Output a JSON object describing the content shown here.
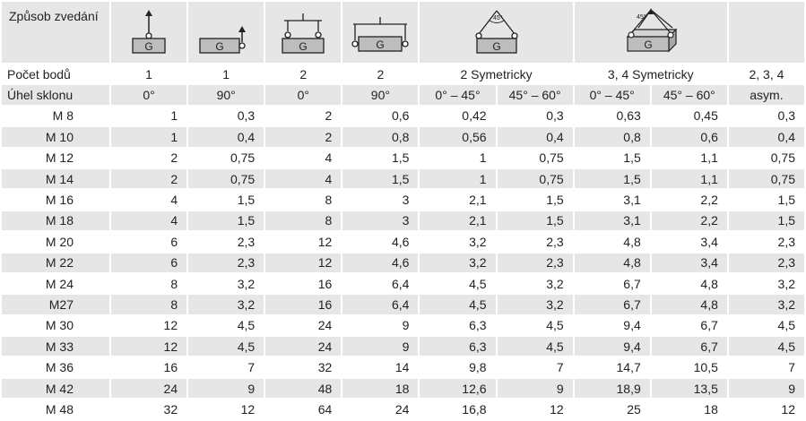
{
  "header": {
    "title": "Způsob zvedání",
    "points_label": "Počet bodů",
    "angle_label": "Úhel sklonu",
    "icon_letter": "G",
    "angle_marks": [
      "45°",
      "45°"
    ]
  },
  "points_row": [
    "1",
    "1",
    "2",
    "2",
    "2 Symetricky",
    "3, 4 Symetricky",
    "2, 3, 4"
  ],
  "angle_row": [
    "0°",
    "90°",
    "0°",
    "90°",
    "0° – 45°",
    "45° – 60°",
    "0° – 45°",
    "45° – 60°",
    "asym."
  ],
  "rows": [
    {
      "label": "M 8",
      "values": [
        "1",
        "0,3",
        "2",
        "0,6",
        "0,42",
        "0,3",
        "0,63",
        "0,45",
        "0,3"
      ]
    },
    {
      "label": "M 10",
      "values": [
        "1",
        "0,4",
        "2",
        "0,8",
        "0,56",
        "0,4",
        "0,8",
        "0,6",
        "0,4"
      ]
    },
    {
      "label": "M 12",
      "values": [
        "2",
        "0,75",
        "4",
        "1,5",
        "1",
        "0,75",
        "1,5",
        "1,1",
        "0,75"
      ]
    },
    {
      "label": "M 14",
      "values": [
        "2",
        "0,75",
        "4",
        "1,5",
        "1",
        "0,75",
        "1,5",
        "1,1",
        "0,75"
      ]
    },
    {
      "label": "M 16",
      "values": [
        "4",
        "1,5",
        "8",
        "3",
        "2,1",
        "1,5",
        "3,1",
        "2,2",
        "1,5"
      ]
    },
    {
      "label": "M 18",
      "values": [
        "4",
        "1,5",
        "8",
        "3",
        "2,1",
        "1,5",
        "3,1",
        "2,2",
        "1,5"
      ]
    },
    {
      "label": "M 20",
      "values": [
        "6",
        "2,3",
        "12",
        "4,6",
        "3,2",
        "2,3",
        "4,8",
        "3,4",
        "2,3"
      ]
    },
    {
      "label": "M 22",
      "values": [
        "6",
        "2,3",
        "12",
        "4,6",
        "3,2",
        "2,3",
        "4,8",
        "3,4",
        "2,3"
      ]
    },
    {
      "label": "M 24",
      "values": [
        "8",
        "3,2",
        "16",
        "6,4",
        "4,5",
        "3,2",
        "6,7",
        "4,8",
        "3,2"
      ]
    },
    {
      "label": "M27",
      "values": [
        "8",
        "3,2",
        "16",
        "6,4",
        "4,5",
        "3,2",
        "6,7",
        "4,8",
        "3,2"
      ]
    },
    {
      "label": "M 30",
      "values": [
        "12",
        "4,5",
        "24",
        "9",
        "6,3",
        "4,5",
        "9,4",
        "6,7",
        "4,5"
      ]
    },
    {
      "label": "M 33",
      "values": [
        "12",
        "4,5",
        "24",
        "9",
        "6,3",
        "4,5",
        "9,4",
        "6,7",
        "4,5"
      ]
    },
    {
      "label": "M 36",
      "values": [
        "16",
        "7",
        "32",
        "14",
        "9,8",
        "7",
        "14,7",
        "10,5",
        "7"
      ]
    },
    {
      "label": "M 42",
      "values": [
        "24",
        "9",
        "48",
        "18",
        "12,6",
        "9",
        "18,9",
        "13,5",
        "9"
      ]
    },
    {
      "label": "M 48",
      "values": [
        "32",
        "12",
        "64",
        "24",
        "16,8",
        "12",
        "25",
        "18",
        "12"
      ]
    }
  ]
}
